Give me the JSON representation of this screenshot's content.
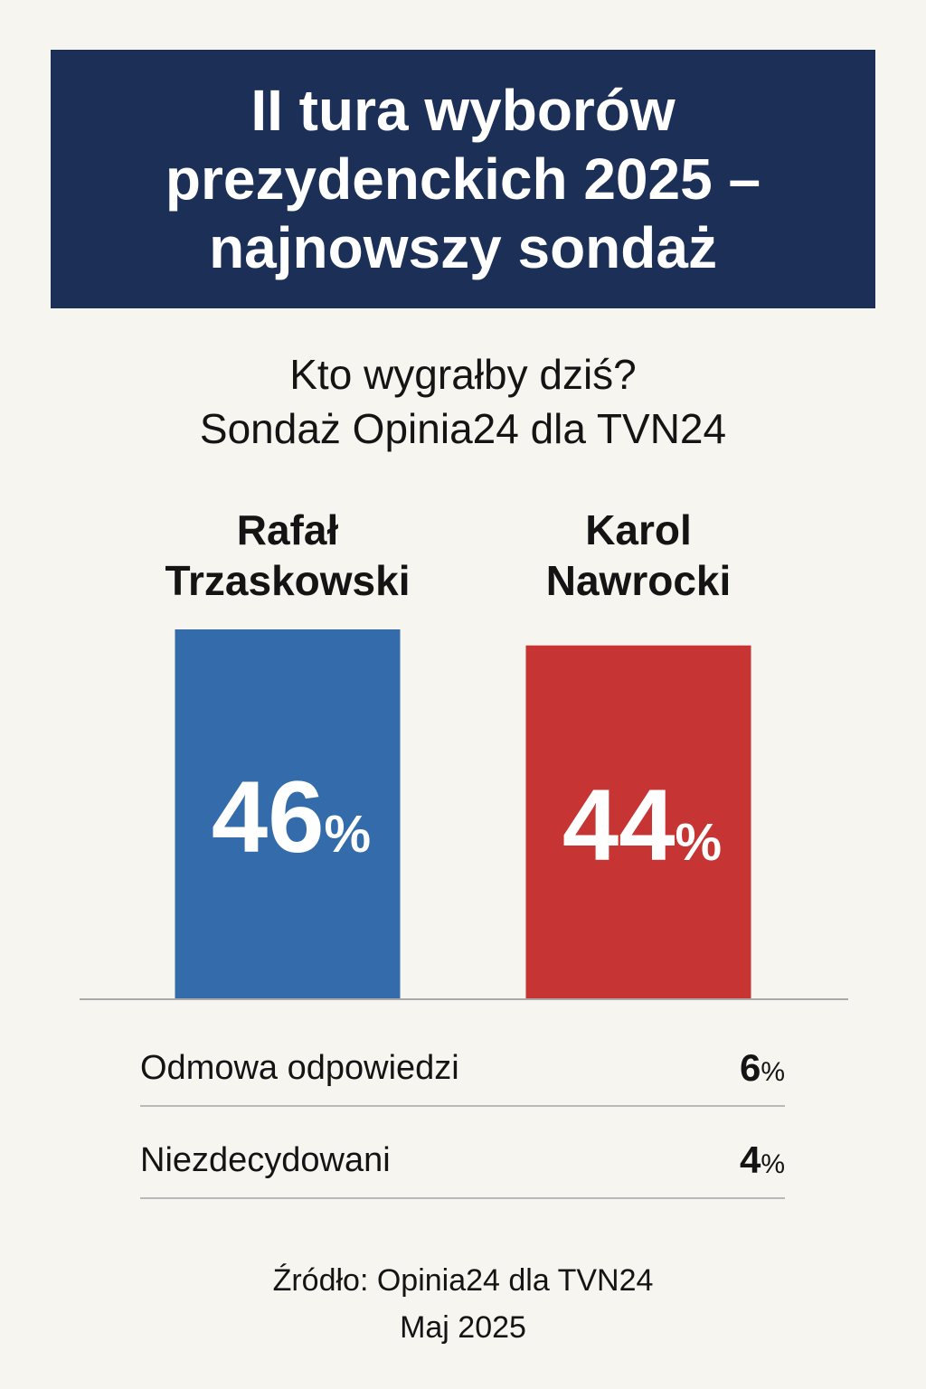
{
  "header": {
    "title": "II tura wyborów prezydenckich 2025 – najnowszy sondaż"
  },
  "subtitle": {
    "line1": "Kto wygrałby dziś?",
    "line2": "Sondaż Opinia24 dla TVN24"
  },
  "chart_data": {
    "type": "bar",
    "categories": [
      "Rafał Trzaskowski",
      "Karol Nawrocki"
    ],
    "category_lines": [
      [
        "Rafał",
        "Trzaskowski"
      ],
      [
        "Karol",
        "Nawrocki"
      ]
    ],
    "values": [
      46,
      44
    ],
    "value_labels": [
      "46",
      "44"
    ],
    "unit": "%",
    "colors": [
      "#336bab",
      "#c63533"
    ],
    "ylim": [
      0,
      46
    ],
    "xlabel": "",
    "ylabel": "",
    "grid": false,
    "legend": "none"
  },
  "other_answers": [
    {
      "label": "Odmowa odpowiedzi",
      "value": "6",
      "unit": "%"
    },
    {
      "label": "Niezdecydowani",
      "value": "4",
      "unit": "%"
    }
  ],
  "source": {
    "line1": "Źródło: Opinia24 dla TVN24",
    "line2": "Maj 2025"
  }
}
